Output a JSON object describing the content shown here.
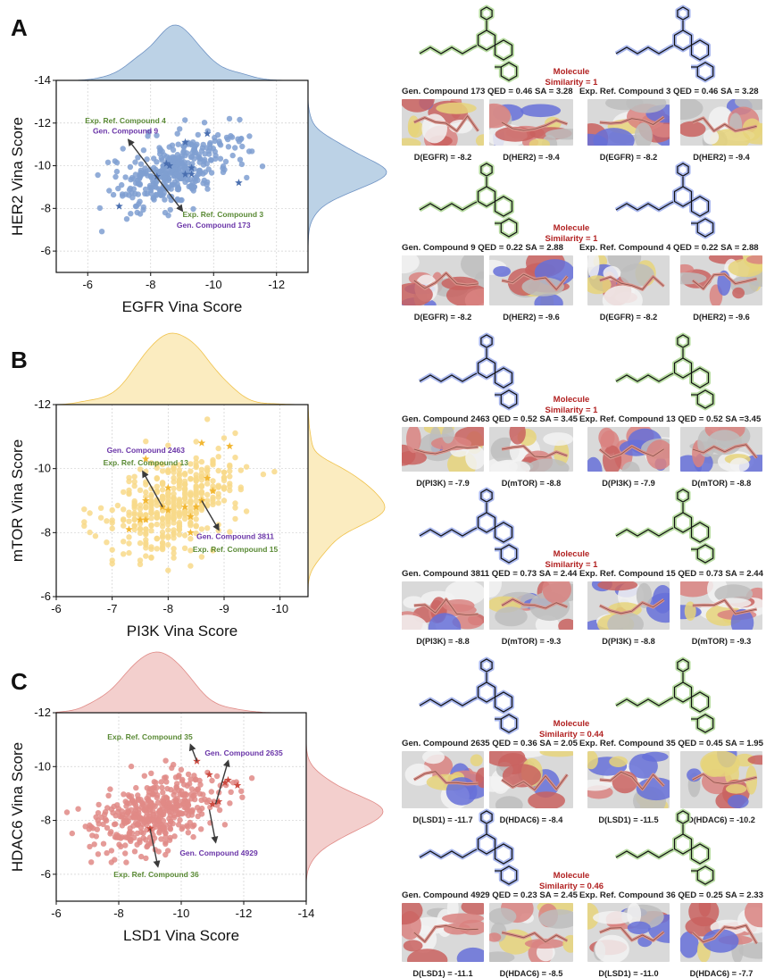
{
  "panels": [
    {
      "letter": "A",
      "color": "#7f9fd1",
      "kde_fill": "#bcd2e6",
      "kde_stroke": "#6f93c4",
      "star_color": "#4a6fb0",
      "chart_data": {
        "type": "scatter",
        "xlabel": "EGFR Vina Score",
        "ylabel": "HER2 Vina Score",
        "xlim": [
          -5,
          -13
        ],
        "ylim": [
          -5,
          -14
        ],
        "xticks": [
          -6,
          -8,
          -10,
          -12
        ],
        "yticks": [
          -6,
          -8,
          -10,
          -12,
          -14
        ],
        "grid": true,
        "marginals": "kde top and right",
        "stars": [
          [
            -7.0,
            -8.1
          ],
          [
            -8.2,
            -9.5
          ],
          [
            -8.5,
            -10.1
          ],
          [
            -8.6,
            -10.0
          ],
          [
            -9.1,
            -11.1
          ],
          [
            -9.1,
            -9.6
          ],
          [
            -9.3,
            -9.9
          ],
          [
            -9.3,
            -9.6
          ],
          [
            -9.8,
            -11.5
          ],
          [
            -10.8,
            -9.2
          ]
        ],
        "cluster": {
          "center": [
            -8.8,
            -9.8
          ],
          "spread": [
            0.9,
            0.9
          ],
          "n": 380,
          "corr": 0.55
        },
        "annotations": [
          {
            "text": "Exp. Ref. Compound 4",
            "color": "#5a8a35",
            "x": -7.2,
            "y": -12.0
          },
          {
            "text": "Gen. Compound 9",
            "color": "#6a35a8",
            "x": -7.2,
            "y": -11.5
          },
          {
            "text": "Exp. Ref. Compound 3",
            "color": "#5a8a35",
            "x": -10.3,
            "y": -7.6
          },
          {
            "text": "Gen. Compound 173",
            "color": "#6a35a8",
            "x": -10.0,
            "y": -7.1
          }
        ],
        "arrows": [
          {
            "from": [
              -8.2,
              -9.5
            ],
            "to": [
              -7.3,
              -11.2
            ],
            "double": true,
            "to2": [
              -9.0,
              -7.9
            ]
          }
        ]
      }
    },
    {
      "letter": "B",
      "color": "#f8d98a",
      "kde_fill": "#fbecc0",
      "kde_stroke": "#f0c24b",
      "star_color": "#f2b733",
      "chart_data": {
        "type": "scatter",
        "xlabel": "PI3K Vina Score",
        "ylabel": "mTOR Vina Score",
        "xlim": [
          -6,
          -10.5
        ],
        "ylim": [
          -6,
          -12
        ],
        "xticks": [
          -6,
          -7,
          -8,
          -9,
          -10
        ],
        "yticks": [
          -6,
          -8,
          -10,
          -12
        ],
        "grid": true,
        "marginals": "kde top and right",
        "stars": [
          [
            -7.3,
            -8.1
          ],
          [
            -7.5,
            -8.4
          ],
          [
            -7.6,
            -8.4
          ],
          [
            -7.6,
            -9.0
          ],
          [
            -7.6,
            -10.3
          ],
          [
            -7.9,
            -8.8
          ],
          [
            -8.0,
            -8.7
          ],
          [
            -8.0,
            -9.4
          ],
          [
            -8.3,
            -8.8
          ],
          [
            -8.4,
            -8.5
          ],
          [
            -8.4,
            -8.0
          ],
          [
            -8.5,
            -8.8
          ],
          [
            -8.6,
            -9.0
          ],
          [
            -8.6,
            -10.8
          ],
          [
            -8.7,
            -9.7
          ],
          [
            -8.8,
            -9.3
          ],
          [
            -9.1,
            -10.7
          ]
        ],
        "cluster": {
          "center": [
            -8.1,
            -8.9
          ],
          "spread": [
            0.55,
            0.75
          ],
          "n": 420,
          "corr": 0.45,
          "grid_step": 0.1
        },
        "annotations": [
          {
            "text": "Gen. Compound 2463",
            "color": "#6a35a8",
            "x": -7.6,
            "y": -10.5
          },
          {
            "text": "Exp. Ref. Compound 13",
            "color": "#5a8a35",
            "x": -7.6,
            "y": -10.1
          },
          {
            "text": "Gen. Compound 3811",
            "color": "#6a35a8",
            "x": -9.2,
            "y": -7.8
          },
          {
            "text": "Exp. Ref. Compound 15",
            "color": "#5a8a35",
            "x": -9.2,
            "y": -7.4
          }
        ],
        "arrows": [
          {
            "from": [
              -7.9,
              -8.8
            ],
            "to": [
              -7.55,
              -9.9
            ]
          },
          {
            "from": [
              -8.6,
              -9.0
            ],
            "to": [
              -8.9,
              -8.1
            ]
          }
        ]
      }
    },
    {
      "letter": "C",
      "color": "#e08a86",
      "kde_fill": "#f3cfcd",
      "kde_stroke": "#e08a86",
      "star_color": "#cc4a40",
      "chart_data": {
        "type": "scatter",
        "xlabel": "LSD1 Vina Score",
        "ylabel": "HDAC6 Vina Score",
        "xlim": [
          -6,
          -14
        ],
        "ylim": [
          -5,
          -12
        ],
        "xticks": [
          -6,
          -8,
          -10,
          -12,
          -14
        ],
        "yticks": [
          -6,
          -8,
          -10,
          -12
        ],
        "grid": true,
        "marginals": "kde top and right",
        "stars": [
          [
            -9.0,
            -7.7
          ],
          [
            -10.5,
            -10.2
          ],
          [
            -10.9,
            -9.7
          ],
          [
            -11.0,
            -8.6
          ],
          [
            -11.2,
            -8.7
          ],
          [
            -11.4,
            -9.4
          ],
          [
            -11.5,
            -9.5
          ],
          [
            -11.8,
            -9.3
          ]
        ],
        "cluster": {
          "center": [
            -9.2,
            -8.3
          ],
          "spread": [
            1.0,
            0.7
          ],
          "n": 430,
          "corr": 0.45
        },
        "annotations": [
          {
            "text": "Exp. Ref. Compound 35",
            "color": "#5a8a35",
            "x": -9.0,
            "y": -11.0
          },
          {
            "text": "Gen. Compound 2635",
            "color": "#6a35a8",
            "x": -12.0,
            "y": -10.4
          },
          {
            "text": "Gen. Compound 4929",
            "color": "#6a35a8",
            "x": -11.2,
            "y": -6.7
          },
          {
            "text": "Exp. Ref. Compound 36",
            "color": "#5a8a35",
            "x": -9.2,
            "y": -5.9
          }
        ],
        "arrows": [
          {
            "from": [
              -10.5,
              -10.2
            ],
            "to": [
              -10.3,
              -10.8
            ]
          },
          {
            "from": [
              -11.1,
              -8.6
            ],
            "to": [
              -11.5,
              -10.2
            ]
          },
          {
            "from": [
              -10.9,
              -8.4
            ],
            "to": [
              -11.1,
              -7.2
            ]
          },
          {
            "from": [
              -9.0,
              -7.7
            ],
            "to": [
              -9.25,
              -6.3
            ]
          }
        ]
      }
    }
  ],
  "comparisons": [
    {
      "similarity_line1": "Molecule",
      "similarity_line2": "Similarity = 1",
      "left": {
        "caption": "Gen. Compound 173 QED = 0.46 SA = 3.28",
        "highlight": "green",
        "scores": [
          "D(EGFR) = -8.2",
          "D(HER2) = -9.4"
        ]
      },
      "right": {
        "caption": "Exp. Ref. Compound 3 QED =  0.46  SA = 3.28",
        "highlight": "blue",
        "scores": [
          "D(EGFR) = -8.2",
          "D(HER2) = -9.4"
        ]
      }
    },
    {
      "similarity_line1": "Molecule",
      "similarity_line2": "Similarity = 1",
      "left": {
        "caption": "Gen. Compound 9 QED = 0.22 SA = 2.88",
        "highlight": "green",
        "scores": [
          "D(EGFR) = -8.2",
          "D(HER2) = -9.6"
        ]
      },
      "right": {
        "caption": "Exp. Ref. Compound 4 QED = 0.22   SA = 2.88",
        "highlight": "blue",
        "scores": [
          "D(EGFR) = -8.2",
          "D(HER2) = -9.6"
        ]
      }
    },
    {
      "similarity_line1": "Molecule",
      "similarity_line2": "Similarity = 1",
      "left": {
        "caption": "Gen. Compound 2463 QED = 0.52 SA = 3.45",
        "highlight": "blue",
        "scores": [
          "D(PI3K) = -7.9",
          "D(mTOR) = -8.8"
        ]
      },
      "right": {
        "caption": "Exp. Ref. Compound 13 QED =  0.52  SA =3.45",
        "highlight": "green",
        "scores": [
          "D(PI3K) = -7.9",
          "D(mTOR) = -8.8"
        ]
      }
    },
    {
      "similarity_line1": "Molecule",
      "similarity_line2": "Similarity = 1",
      "left": {
        "caption": "Gen. Compound 3811 QED = 0.73 SA = 2.44",
        "highlight": "blue",
        "scores": [
          "D(PI3K) = -8.8",
          "D(mTOR) = -9.3"
        ]
      },
      "right": {
        "caption": "Exp. Ref. Compound 15 QED = 0.73   SA = 2.44",
        "highlight": "green",
        "scores": [
          "D(PI3K) = -8.8",
          "D(mTOR) = -9.3"
        ]
      }
    },
    {
      "similarity_line1": "Molecule",
      "similarity_line2": "Similarity = 0.44",
      "left": {
        "caption": "Gen. Compound 2635 QED = 0.36 SA = 2.05",
        "highlight": "blue",
        "scores": [
          "D(LSD1) = -11.7",
          "D(HDAC6) = -8.4"
        ]
      },
      "right": {
        "caption": "Exp. Ref. Compound 35 QED = 0.45   SA =  1.95",
        "highlight": "green",
        "scores": [
          "D(LSD1) = -11.5",
          "D(HDAC6) = -10.2"
        ]
      }
    },
    {
      "similarity_line1": "Molecule",
      "similarity_line2": "Similarity = 0.46",
      "left": {
        "caption": "Gen. Compound 4929 QED = 0.23 SA = 2.45",
        "highlight": "blue",
        "scores": [
          "D(LSD1) = -11.1",
          "D(HDAC6) = -8.5"
        ]
      },
      "right": {
        "caption": "Exp. Ref. Compound 36 QED = 0.25   SA = 2.33",
        "highlight": "green",
        "scores": [
          "D(LSD1) = -11.0",
          "D(HDAC6) = -7.7"
        ]
      }
    }
  ]
}
